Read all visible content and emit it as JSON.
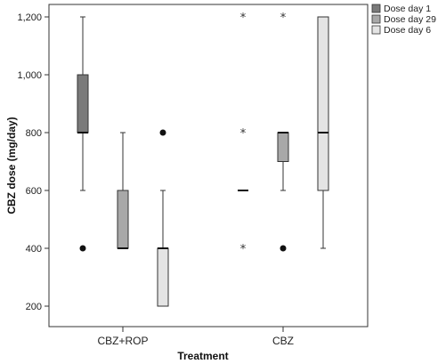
{
  "chart_data": {
    "type": "boxplot",
    "xlabel": "Treatment",
    "ylabel": "CBZ dose (mg/day)",
    "ylim": [
      140,
      1250
    ],
    "yticks": [
      200,
      400,
      600,
      800,
      1000,
      1200
    ],
    "ytick_labels": [
      "200",
      "400",
      "600",
      "800",
      "1,000",
      "1,200"
    ],
    "categories": [
      "CBZ+ROP",
      "CBZ"
    ],
    "legend_position": "top-right",
    "series": [
      {
        "name": "Dose day 1",
        "color": "#7a7a7a",
        "boxes": [
          {
            "category": "CBZ+ROP",
            "min": 600,
            "q1": 800,
            "median": 800,
            "q3": 1000,
            "max": 1200,
            "outliers": [
              {
                "value": 400,
                "marker": "circle"
              }
            ]
          },
          {
            "category": "CBZ",
            "min": 600,
            "q1": 600,
            "median": 600,
            "q3": 600,
            "max": 600,
            "outliers": [
              {
                "value": 1200,
                "marker": "star"
              },
              {
                "value": 800,
                "marker": "star"
              },
              {
                "value": 400,
                "marker": "star"
              }
            ]
          }
        ]
      },
      {
        "name": "Dose day 29",
        "color": "#a8a8a8",
        "boxes": [
          {
            "category": "CBZ+ROP",
            "min": 400,
            "q1": 400,
            "median": 400,
            "q3": 600,
            "max": 800,
            "outliers": []
          },
          {
            "category": "CBZ",
            "min": 600,
            "q1": 700,
            "median": 800,
            "q3": 800,
            "max": 800,
            "outliers": [
              {
                "value": 1200,
                "marker": "star"
              },
              {
                "value": 400,
                "marker": "circle"
              }
            ]
          }
        ]
      },
      {
        "name": "Dose day 6",
        "color": "#e4e4e4",
        "boxes": [
          {
            "category": "CBZ+ROP",
            "min": 200,
            "q1": 200,
            "median": 400,
            "q3": 400,
            "max": 600,
            "outliers": [
              {
                "value": 800,
                "marker": "circle"
              }
            ]
          },
          {
            "category": "CBZ",
            "min": 400,
            "q1": 600,
            "median": 800,
            "q3": 1200,
            "max": 1200,
            "outliers": []
          }
        ]
      }
    ]
  }
}
